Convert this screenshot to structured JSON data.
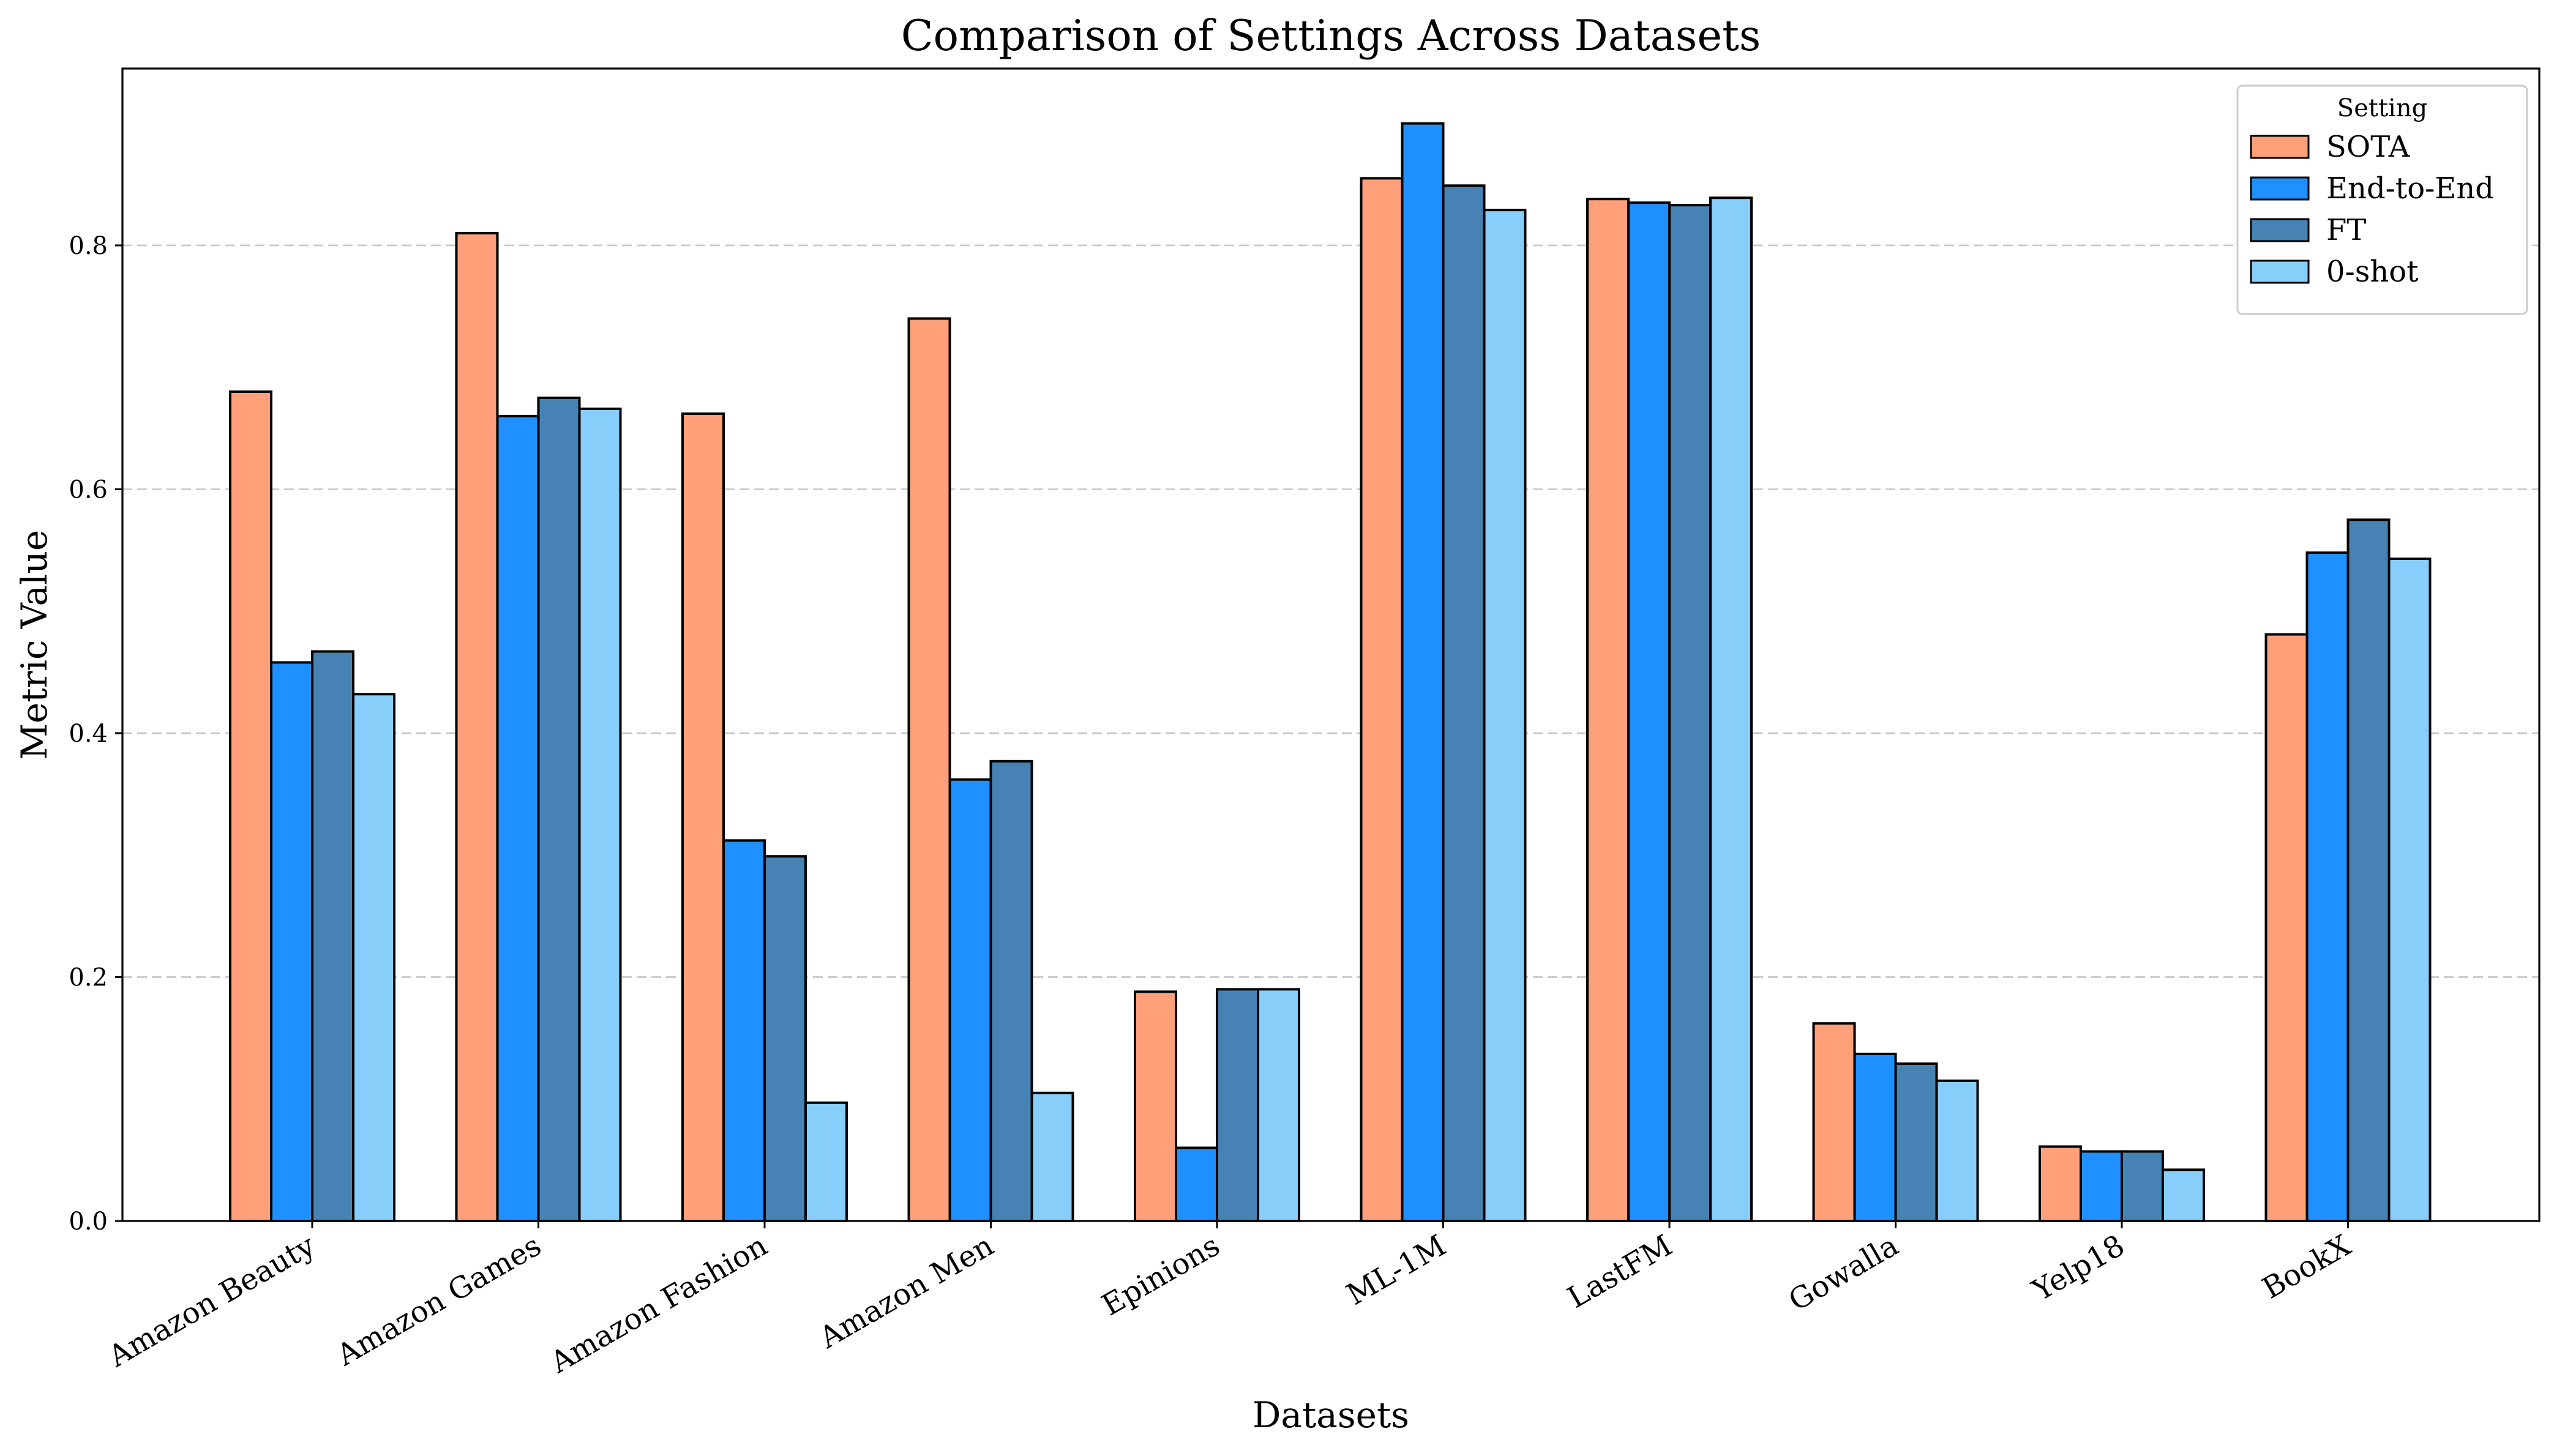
{
  "chart_data": {
    "type": "bar",
    "title": "Comparison of Settings Across Datasets",
    "xlabel": "Datasets",
    "ylabel": "Metric Value",
    "ylim": [
      0,
      0.945
    ],
    "yticks": [
      "0.0",
      "0.2",
      "0.4",
      "0.6",
      "0.8"
    ],
    "grid": "y-dashed",
    "legend_title": "Setting",
    "legend_position": "top-right",
    "categories": [
      "Amazon Beauty",
      "Amazon Games",
      "Amazon Fashion",
      "Amazon Men",
      "Epinions",
      "ML-1M",
      "LastFM",
      "Gowalla",
      "Yelp18",
      "BookX"
    ],
    "series": [
      {
        "name": "SOTA",
        "color": "#FFA07A",
        "values": [
          0.68,
          0.81,
          0.662,
          0.74,
          0.188,
          0.855,
          0.838,
          0.162,
          0.061,
          0.481
        ]
      },
      {
        "name": "End-to-End",
        "color": "#1E90FF",
        "values": [
          0.458,
          0.66,
          0.312,
          0.362,
          0.06,
          0.9,
          0.835,
          0.137,
          0.057,
          0.548
        ]
      },
      {
        "name": "FT",
        "color": "#4682B4",
        "values": [
          0.467,
          0.675,
          0.299,
          0.377,
          0.19,
          0.849,
          0.833,
          0.129,
          0.057,
          0.575
        ]
      },
      {
        "name": "0-shot",
        "color": "#87CEFA",
        "values": [
          0.432,
          0.666,
          0.097,
          0.105,
          0.19,
          0.829,
          0.839,
          0.115,
          0.042,
          0.543
        ]
      }
    ]
  }
}
